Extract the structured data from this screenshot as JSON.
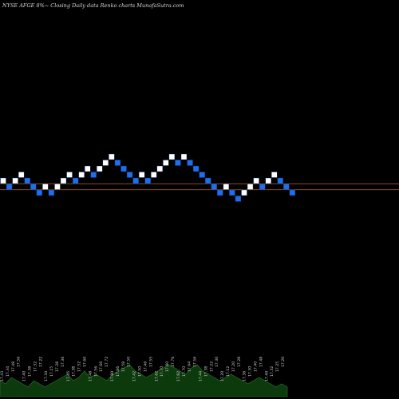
{
  "title": "NYSE AFGE 8%~  Closing Daily data  Renko  charts MunafaSutra.com",
  "colors": {
    "background": "#000000",
    "up_brick": "#ffffff",
    "down_brick": "#1e6ff0",
    "brick_edge": "#0a2a66",
    "reference_line": "#b5651d",
    "volume_fill": "#0c3a0c",
    "volume_edge": "#2b7a2b"
  },
  "chart_data": [
    {
      "type": "renko",
      "title": "NYSE AFGE 8%~  Closing Daily data  Renko  charts MunafaSutra.com",
      "bricks": [
        {
          "level": 17.4,
          "dir": "up"
        },
        {
          "level": 17.3,
          "dir": "down"
        },
        {
          "level": 17.4,
          "dir": "up"
        },
        {
          "level": 17.5,
          "dir": "up"
        },
        {
          "level": 17.4,
          "dir": "down"
        },
        {
          "level": 17.3,
          "dir": "down"
        },
        {
          "level": 17.2,
          "dir": "down"
        },
        {
          "level": 17.3,
          "dir": "up"
        },
        {
          "level": 17.2,
          "dir": "down"
        },
        {
          "level": 17.3,
          "dir": "up"
        },
        {
          "level": 17.4,
          "dir": "up"
        },
        {
          "level": 17.5,
          "dir": "up"
        },
        {
          "level": 17.4,
          "dir": "down"
        },
        {
          "level": 17.5,
          "dir": "up"
        },
        {
          "level": 17.6,
          "dir": "up"
        },
        {
          "level": 17.5,
          "dir": "down"
        },
        {
          "level": 17.6,
          "dir": "up"
        },
        {
          "level": 17.7,
          "dir": "up"
        },
        {
          "level": 17.8,
          "dir": "up"
        },
        {
          "level": 17.7,
          "dir": "down"
        },
        {
          "level": 17.6,
          "dir": "down"
        },
        {
          "level": 17.5,
          "dir": "down"
        },
        {
          "level": 17.4,
          "dir": "down"
        },
        {
          "level": 17.5,
          "dir": "up"
        },
        {
          "level": 17.4,
          "dir": "down"
        },
        {
          "level": 17.5,
          "dir": "up"
        },
        {
          "level": 17.6,
          "dir": "up"
        },
        {
          "level": 17.7,
          "dir": "up"
        },
        {
          "level": 17.8,
          "dir": "up"
        },
        {
          "level": 17.7,
          "dir": "down"
        },
        {
          "level": 17.8,
          "dir": "up"
        },
        {
          "level": 17.7,
          "dir": "down"
        },
        {
          "level": 17.6,
          "dir": "down"
        },
        {
          "level": 17.5,
          "dir": "down"
        },
        {
          "level": 17.4,
          "dir": "down"
        },
        {
          "level": 17.3,
          "dir": "down"
        },
        {
          "level": 17.2,
          "dir": "down"
        },
        {
          "level": 17.3,
          "dir": "up"
        },
        {
          "level": 17.2,
          "dir": "down"
        },
        {
          "level": 17.1,
          "dir": "down"
        },
        {
          "level": 17.2,
          "dir": "up"
        },
        {
          "level": 17.3,
          "dir": "up"
        },
        {
          "level": 17.4,
          "dir": "up"
        },
        {
          "level": 17.3,
          "dir": "down"
        },
        {
          "level": 17.4,
          "dir": "up"
        },
        {
          "level": 17.5,
          "dir": "up"
        },
        {
          "level": 17.4,
          "dir": "down"
        },
        {
          "level": 17.3,
          "dir": "down"
        },
        {
          "level": 17.2,
          "dir": "down"
        }
      ],
      "reference_lines": [
        17.35,
        17.25
      ],
      "volume_labels": [
        "17.43",
        "17.34",
        "17.48",
        "17.56",
        "17.40",
        "17.38",
        "17.32",
        "17.22",
        "17.34",
        "17.15",
        "17.28",
        "17.36",
        "17.45",
        "17.38",
        "17.52",
        "17.60",
        "17.48",
        "17.56",
        "17.66",
        "17.72",
        "17.80",
        "17.66",
        "17.58",
        "17.50",
        "17.42",
        "17.50",
        "17.46",
        "17.55",
        "17.62",
        "17.70",
        "17.80",
        "17.76",
        "17.82",
        "17.70",
        "17.64",
        "17.56",
        "17.44",
        "17.38",
        "17.22",
        "17.30",
        "17.20",
        "17.12",
        "17.20",
        "17.28",
        "17.36",
        "17.30",
        "17.40",
        "17.48",
        "17.40",
        "17.32",
        "17.25",
        "17.20"
      ],
      "volume": [
        5,
        4,
        6,
        5,
        4,
        3,
        5,
        4,
        3,
        4,
        5,
        6,
        7,
        5,
        6,
        8,
        6,
        7,
        6,
        5,
        7,
        8,
        9,
        10,
        8,
        7,
        6,
        7,
        8,
        9,
        10,
        9,
        8,
        7,
        9,
        10,
        8,
        7,
        6,
        5,
        6,
        7,
        6,
        5,
        4,
        5,
        6,
        5,
        4,
        3,
        4,
        3
      ]
    }
  ]
}
